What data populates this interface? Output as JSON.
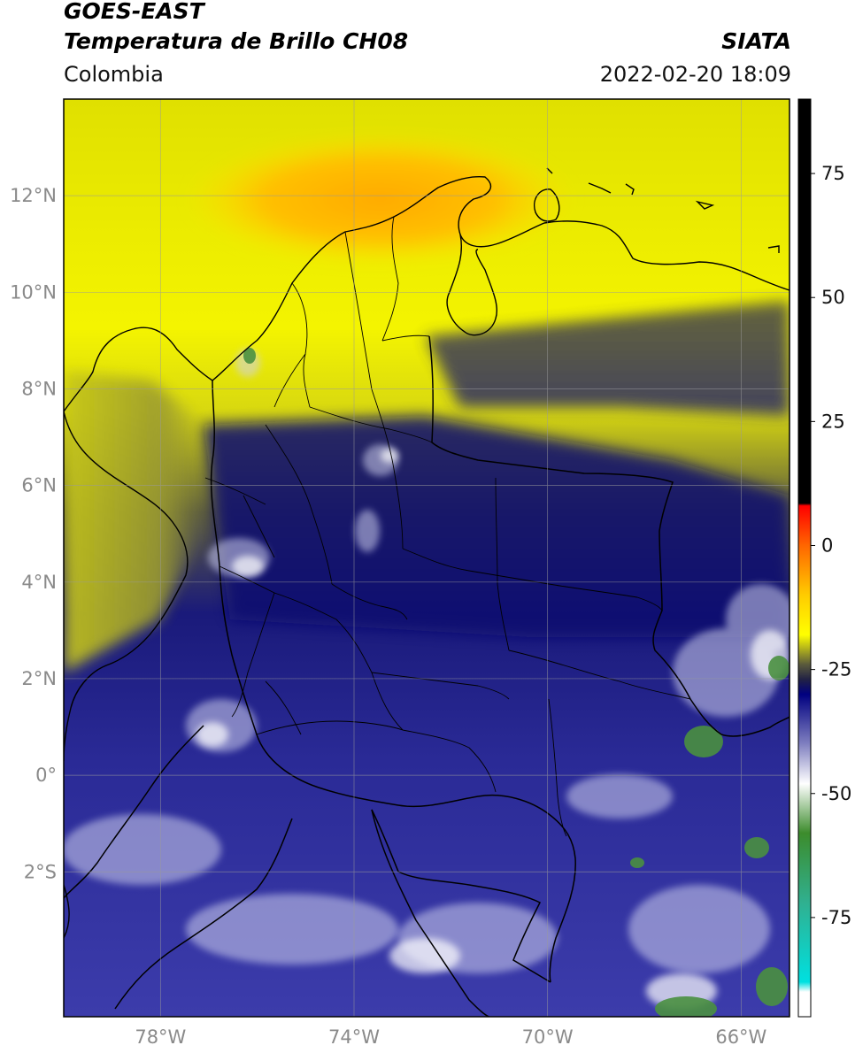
{
  "header": {
    "title_line1": "GOES-EAST",
    "title_line2": "Temperatura de Brillo CH08",
    "brand": "SIATA",
    "region": "Colombia",
    "timestamp": "2022-02-20 18:09"
  },
  "map": {
    "lon_range": [
      -80,
      -65
    ],
    "lat_range": [
      -5,
      14
    ],
    "lat_ticks": [
      {
        "value": 12,
        "label": "12°N"
      },
      {
        "value": 10,
        "label": "10°N"
      },
      {
        "value": 8,
        "label": "8°N"
      },
      {
        "value": 6,
        "label": "6°N"
      },
      {
        "value": 4,
        "label": "4°N"
      },
      {
        "value": 2,
        "label": "2°N"
      },
      {
        "value": 0,
        "label": "0°"
      },
      {
        "value": -2,
        "label": "2°S"
      }
    ],
    "lon_ticks": [
      {
        "value": -78,
        "label": "78°W"
      },
      {
        "value": -74,
        "label": "74°W"
      },
      {
        "value": -70,
        "label": "70°W"
      },
      {
        "value": -66,
        "label": "66°W"
      }
    ],
    "gridlines": true
  },
  "colorbar": {
    "range": [
      -95,
      90
    ],
    "ticks": [
      {
        "value": 75,
        "label": "75"
      },
      {
        "value": 50,
        "label": "50"
      },
      {
        "value": 25,
        "label": "25"
      },
      {
        "value": 0,
        "label": "0"
      },
      {
        "value": -25,
        "label": "-25"
      },
      {
        "value": -50,
        "label": "-50"
      },
      {
        "value": -75,
        "label": "-75"
      }
    ],
    "stops": [
      {
        "value": 90,
        "color": "#000000"
      },
      {
        "value": 8.5,
        "color": "#000000"
      },
      {
        "value": 8,
        "color": "#ff0000"
      },
      {
        "value": 0,
        "color": "#ff6600"
      },
      {
        "value": -10,
        "color": "#ffcc00"
      },
      {
        "value": -18,
        "color": "#ffff00"
      },
      {
        "value": -24,
        "color": "#5a5a3c"
      },
      {
        "value": -27,
        "color": "#222244"
      },
      {
        "value": -30,
        "color": "#000080"
      },
      {
        "value": -40,
        "color": "#8080c0"
      },
      {
        "value": -48,
        "color": "#ffffff"
      },
      {
        "value": -58,
        "color": "#3c8c2c"
      },
      {
        "value": -72,
        "color": "#30b090"
      },
      {
        "value": -88,
        "color": "#00e0e0"
      },
      {
        "value": -90,
        "color": "#ffffff"
      },
      {
        "value": -95,
        "color": "#ffffff"
      }
    ]
  },
  "colors": {
    "yellow": "#f2f200",
    "orange": "#ffb000",
    "olive": "#b8b820",
    "dark_olive": "#4a4a40",
    "navy": "#101080",
    "blue": "#4a4aa8",
    "lavender": "#b8b8e0",
    "green": "#4a9040"
  }
}
